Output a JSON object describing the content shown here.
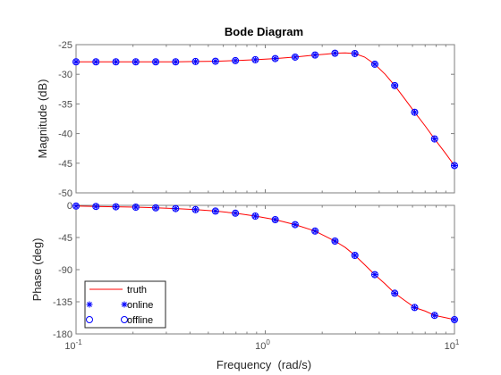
{
  "colors": {
    "truth": "#ff0000",
    "online": "#0000ff",
    "offline": "#0000ff",
    "axes": "#7f7f7f",
    "background": "#ffffff"
  },
  "chart_data": [
    {
      "type": "line",
      "title": "Bode Diagram",
      "xlabel": "",
      "ylabel": "Magnitude (dB)",
      "xscale": "log",
      "xlim": [
        0.1,
        10
      ],
      "ylim": [
        -50,
        -25
      ],
      "yticks": [
        -25,
        -30,
        -35,
        -40,
        -45,
        -50
      ],
      "x": [
        0.1,
        0.1274,
        0.1624,
        0.2069,
        0.2637,
        0.336,
        0.4281,
        0.5456,
        0.6952,
        0.8859,
        1.1288,
        1.4384,
        1.833,
        2.3357,
        2.9764,
        3.7927,
        4.8329,
        6.1585,
        7.8476,
        10.0
      ],
      "truth_curve": {
        "x": [
          0.1,
          0.1274,
          0.1624,
          0.2069,
          0.2637,
          0.336,
          0.4281,
          0.5456,
          0.6952,
          0.8859,
          1.1288,
          1.4384,
          1.833,
          2.1,
          2.3357,
          2.65,
          2.9764,
          3.35,
          3.7927,
          4.3,
          4.8329,
          5.45,
          6.1585,
          7.0,
          7.8476,
          8.9,
          10.0
        ],
        "y": [
          -27.9,
          -27.9,
          -27.9,
          -27.9,
          -27.9,
          -27.9,
          -27.85,
          -27.8,
          -27.7,
          -27.55,
          -27.35,
          -27.1,
          -26.75,
          -26.6,
          -26.45,
          -26.4,
          -26.5,
          -27.1,
          -28.3,
          -30.0,
          -31.9,
          -34.1,
          -36.4,
          -38.7,
          -40.9,
          -43.2,
          -45.4
        ]
      },
      "series": [
        {
          "name": "online",
          "marker": "star",
          "y": [
            -27.9,
            -27.9,
            -27.9,
            -27.9,
            -27.9,
            -27.9,
            -27.85,
            -27.8,
            -27.7,
            -27.55,
            -27.35,
            -27.1,
            -26.75,
            -26.45,
            -26.5,
            -28.3,
            -31.9,
            -36.4,
            -40.9,
            -45.4
          ]
        },
        {
          "name": "offline",
          "marker": "circle",
          "y": [
            -27.9,
            -27.9,
            -27.9,
            -27.9,
            -27.9,
            -27.9,
            -27.85,
            -27.8,
            -27.7,
            -27.55,
            -27.35,
            -27.1,
            -26.75,
            -26.45,
            -26.5,
            -28.3,
            -31.9,
            -36.4,
            -40.9,
            -45.4
          ]
        }
      ]
    },
    {
      "type": "line",
      "title": "",
      "xlabel": "Frequency  (rad/s)",
      "ylabel": "Phase (deg)",
      "xscale": "log",
      "xlim": [
        0.1,
        10
      ],
      "xticks": [
        {
          "base": "10",
          "exp": "-1",
          "value": 0.1
        },
        {
          "base": "10",
          "exp": "0",
          "value": 1
        },
        {
          "base": "10",
          "exp": "1",
          "value": 10
        }
      ],
      "ylim": [
        -180,
        0
      ],
      "yticks": [
        0,
        -45,
        -90,
        -135,
        -180
      ],
      "x": [
        0.1,
        0.1274,
        0.1624,
        0.2069,
        0.2637,
        0.336,
        0.4281,
        0.5456,
        0.6952,
        0.8859,
        1.1288,
        1.4384,
        1.833,
        2.3357,
        2.9764,
        3.7927,
        4.8329,
        6.1585,
        7.8476,
        10.0
      ],
      "truth_curve": {
        "x": [
          0.1,
          0.1274,
          0.1624,
          0.2069,
          0.2637,
          0.336,
          0.4281,
          0.5456,
          0.6952,
          0.8859,
          1.1288,
          1.4384,
          1.833,
          2.3357,
          2.65,
          2.9764,
          3.35,
          3.7927,
          4.3,
          4.8329,
          5.45,
          6.1585,
          7.0,
          7.8476,
          8.9,
          10.0
        ],
        "y": [
          -1,
          -1.5,
          -2,
          -2.5,
          -3.5,
          -4.5,
          -6,
          -8,
          -11,
          -15,
          -20,
          -27,
          -36,
          -50,
          -59,
          -70,
          -83,
          -97,
          -110,
          -123,
          -133,
          -143,
          -148,
          -154,
          -157,
          -160
        ]
      },
      "series": [
        {
          "name": "online",
          "marker": "star",
          "y": [
            -1,
            -1.5,
            -2,
            -2.5,
            -3.5,
            -4.5,
            -6,
            -8,
            -11,
            -15,
            -20,
            -27,
            -36,
            -50,
            -70,
            -97,
            -123,
            -143,
            -154,
            -160
          ]
        },
        {
          "name": "offline",
          "marker": "circle",
          "y": [
            -1,
            -1.5,
            -2,
            -2.5,
            -3.5,
            -4.5,
            -6,
            -8,
            -11,
            -15,
            -20,
            -27,
            -36,
            -50,
            -70,
            -97,
            -123,
            -143,
            -154,
            -160
          ]
        }
      ],
      "legend": {
        "placement": "bottom-left",
        "entries": [
          {
            "name": "truth",
            "style": "line"
          },
          {
            "name": "online",
            "style": "star"
          },
          {
            "name": "offline",
            "style": "circle"
          }
        ]
      }
    }
  ]
}
